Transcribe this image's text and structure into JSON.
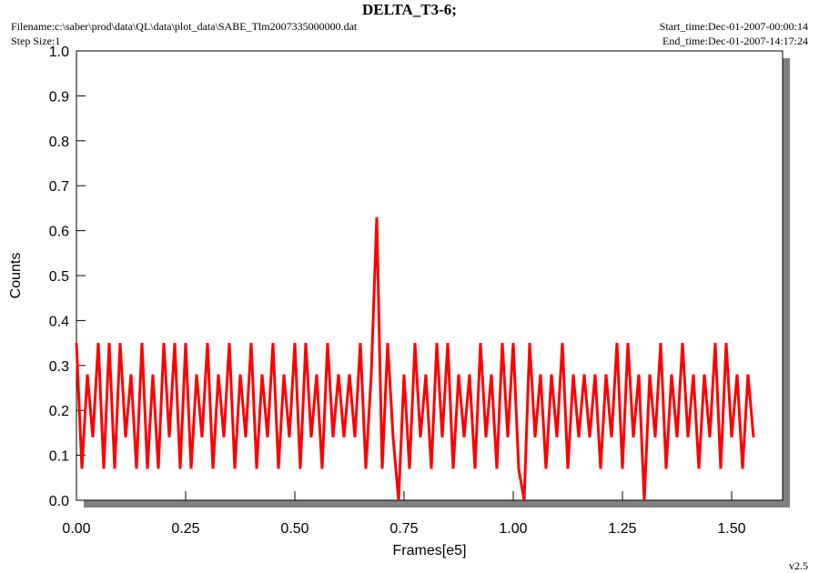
{
  "chart_data": {
    "type": "line",
    "title": "DELTA_T3-6;",
    "filename": "Filename:c:\\saber\\prod\\data\\QL\\data\\plot_data\\SABE_Tlm2007335000000.dat",
    "step_size": "Step Size:1",
    "start_time": "Start_time:Dec-01-2007-00:00:14",
    "end_time": "End_time:Dec-01-2007-14:17:24",
    "version": "v2.5",
    "x_label": "Frames[e5]",
    "y_label": "Counts",
    "color": "#ff0000",
    "xlim": [
      0,
      1.6167
    ],
    "ylim": [
      0,
      1
    ],
    "xticks": [
      {
        "value": 0,
        "label": "0.00"
      },
      {
        "value": 0.25,
        "label": "0.25"
      },
      {
        "value": 0.5,
        "label": "0.50"
      },
      {
        "value": 0.75,
        "label": "0.75"
      },
      {
        "value": 1,
        "label": "1.00"
      },
      {
        "value": 1.25,
        "label": "1.25"
      },
      {
        "value": 1.5,
        "label": "1.50"
      }
    ],
    "yticks": [
      {
        "value": 0,
        "label": "0.0"
      },
      0.1,
      0.2,
      0.3,
      0.4,
      0.5,
      0.6,
      0.7,
      0.8,
      0.9,
      {
        "value": 1,
        "label": "1.0"
      }
    ],
    "x": [
      0,
      0.0125,
      0.025,
      0.0375,
      0.05,
      0.0625,
      0.075,
      0.0875,
      0.1,
      0.1125,
      0.125,
      0.1375,
      0.15,
      0.1625,
      0.175,
      0.1875,
      0.2,
      0.2125,
      0.225,
      0.2375,
      0.25,
      0.2625,
      0.275,
      0.2875,
      0.3,
      0.3125,
      0.325,
      0.3375,
      0.35,
      0.3625,
      0.375,
      0.3875,
      0.4,
      0.4125,
      0.425,
      0.4375,
      0.45,
      0.4625,
      0.475,
      0.4875,
      0.5,
      0.5125,
      0.525,
      0.5375,
      0.55,
      0.5625,
      0.575,
      0.5875,
      0.6,
      0.6125,
      0.625,
      0.6375,
      0.65,
      0.6625,
      0.675,
      0.6875,
      0.7,
      0.7125,
      0.725,
      0.7375,
      0.75,
      0.7625,
      0.775,
      0.7875,
      0.8,
      0.8125,
      0.825,
      0.8375,
      0.85,
      0.8625,
      0.875,
      0.8875,
      0.9,
      0.9125,
      0.925,
      0.9375,
      0.95,
      0.9625,
      0.975,
      0.9875,
      1,
      1.0125,
      1.025,
      1.0375,
      1.05,
      1.0625,
      1.075,
      1.0875,
      1.1,
      1.1125,
      1.125,
      1.1375,
      1.15,
      1.1625,
      1.175,
      1.1875,
      1.2,
      1.2125,
      1.225,
      1.2375,
      1.25,
      1.2625,
      1.275,
      1.2875,
      1.3,
      1.3125,
      1.325,
      1.3375,
      1.35,
      1.3625,
      1.375,
      1.3875,
      1.4,
      1.4125,
      1.425,
      1.4375,
      1.45,
      1.4625,
      1.475,
      1.4875,
      1.5,
      1.5125,
      1.525,
      1.5375,
      1.55
    ],
    "values": [
      0.35,
      0.07,
      0.28,
      0.14,
      0.35,
      0.07,
      0.35,
      0.07,
      0.35,
      0.14,
      0.28,
      0.07,
      0.35,
      0.07,
      0.28,
      0.07,
      0.35,
      0.14,
      0.35,
      0.07,
      0.35,
      0.07,
      0.28,
      0.14,
      0.35,
      0.07,
      0.28,
      0.14,
      0.35,
      0.07,
      0.28,
      0.14,
      0.35,
      0.07,
      0.28,
      0.14,
      0.35,
      0.07,
      0.28,
      0.14,
      0.35,
      0.07,
      0.35,
      0.14,
      0.28,
      0.07,
      0.35,
      0.14,
      0.28,
      0.14,
      0.28,
      0.14,
      0.35,
      0.07,
      0.28,
      0.63,
      0.07,
      0.35,
      0.14,
      0,
      0.28,
      0.07,
      0.35,
      0.14,
      0.28,
      0.07,
      0.35,
      0.14,
      0.35,
      0.07,
      0.28,
      0.14,
      0.28,
      0.07,
      0.35,
      0.14,
      0.28,
      0.07,
      0.35,
      0.14,
      0.35,
      0.07,
      0,
      0.35,
      0.14,
      0.28,
      0.07,
      0.28,
      0.14,
      0.35,
      0.07,
      0.28,
      0.14,
      0.28,
      0.14,
      0.28,
      0.07,
      0.28,
      0.14,
      0.35,
      0.07,
      0.35,
      0.14,
      0.28,
      0,
      0.28,
      0.14,
      0.35,
      0.07,
      0.28,
      0.14,
      0.35,
      0.14,
      0.28,
      0.07,
      0.28,
      0.14,
      0.35,
      0.07,
      0.35,
      0.14,
      0.28,
      0.07,
      0.28,
      0.14
    ]
  }
}
